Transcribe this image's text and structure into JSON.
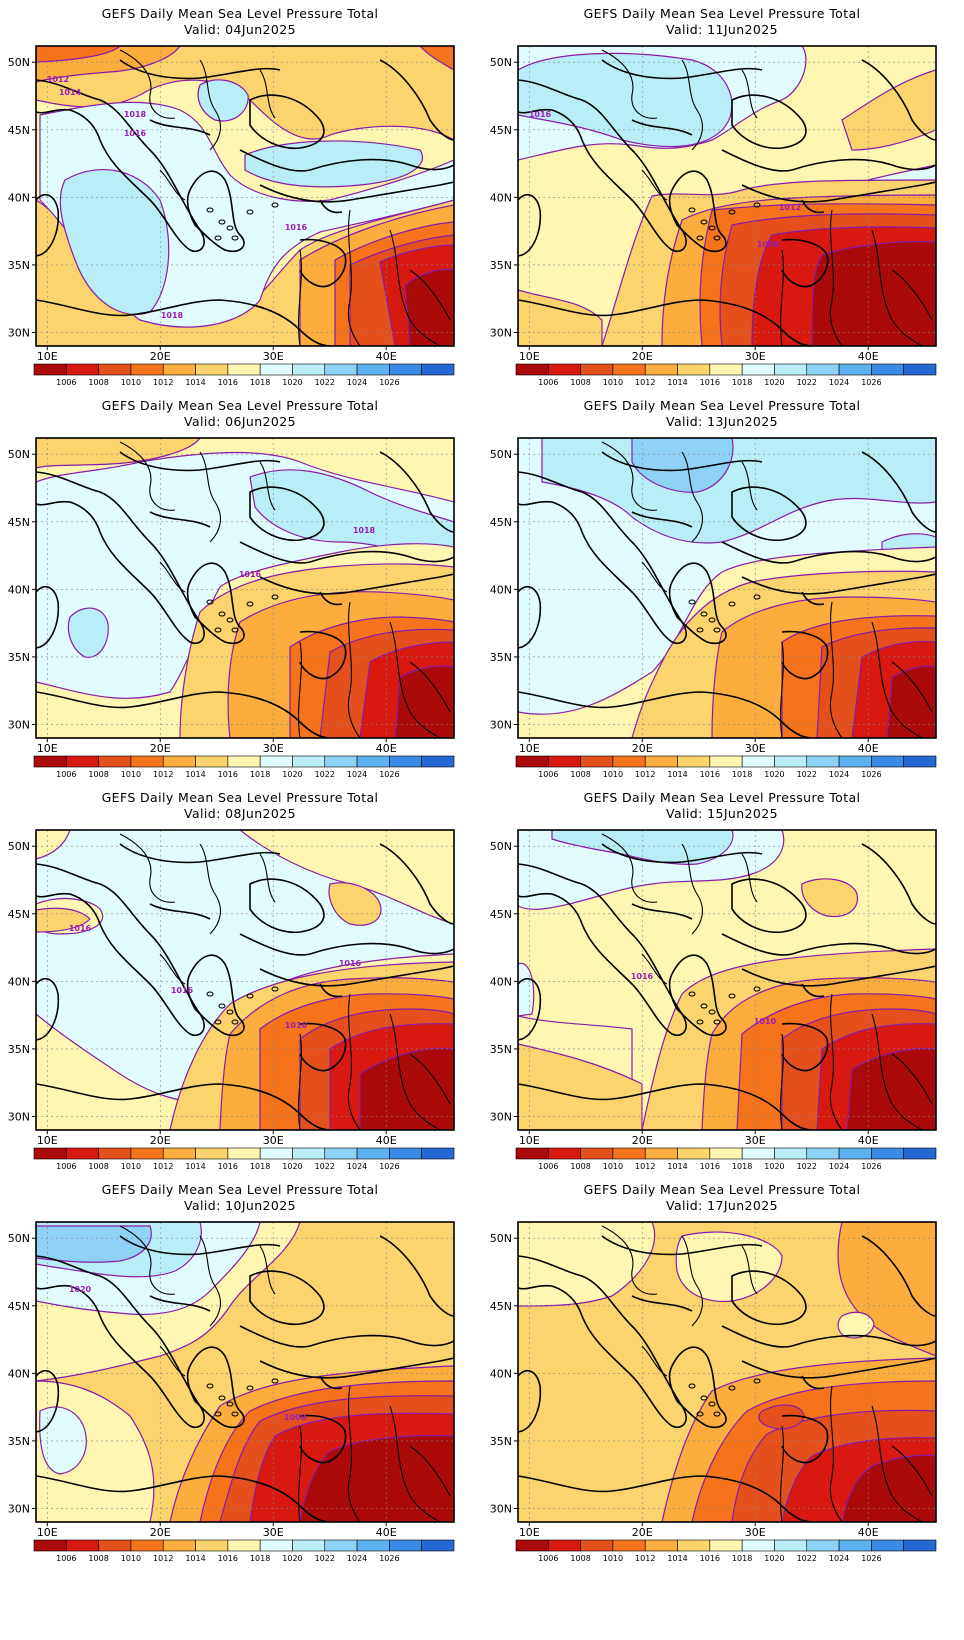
{
  "title": "GEFS Daily Mean Sea Level Pressure Total",
  "valid_prefix": "Valid:",
  "axes": {
    "lon_labels": [
      "10E",
      "20E",
      "30E",
      "40E"
    ],
    "lat_labels": [
      "50N",
      "45N",
      "40N",
      "35N",
      "30N"
    ],
    "lon_values": [
      10,
      20,
      30,
      40
    ],
    "lat_values": [
      50,
      45,
      40,
      35,
      30
    ],
    "lon_range": [
      9,
      46
    ],
    "lat_range": [
      29,
      51.2
    ]
  },
  "colorbar": {
    "labels": [
      "1006",
      "1008",
      "1010",
      "1012",
      "1014",
      "1016",
      "1018",
      "1020",
      "1022",
      "1024",
      "1026"
    ],
    "colors": [
      "#aa0a0a",
      "#d7190f",
      "#e4501c",
      "#f4731b",
      "#fbad3d",
      "#fbd46e",
      "#fff6b2",
      "#e0fcff",
      "#b9eef8",
      "#8ed2f5",
      "#5eb1ef",
      "#3a8be6",
      "#2669d4"
    ]
  },
  "panels": [
    {
      "valid": "04Jun2025",
      "contour_labels": [
        "1012",
        "1014",
        "1018",
        "1016",
        "1016",
        "1018"
      ]
    },
    {
      "valid": "11Jun2025",
      "contour_labels": [
        "1016",
        "1012",
        "1008"
      ]
    },
    {
      "valid": "06Jun2025",
      "contour_labels": [
        "1018",
        "1016"
      ]
    },
    {
      "valid": "13Jun2025",
      "contour_labels": []
    },
    {
      "valid": "08Jun2025",
      "contour_labels": [
        "1016",
        "1016",
        "1016",
        "1010"
      ]
    },
    {
      "valid": "15Jun2025",
      "contour_labels": [
        "1016",
        "1010"
      ]
    },
    {
      "valid": "10Jun2025",
      "contour_labels": [
        "1020",
        "1008"
      ]
    },
    {
      "valid": "17Jun2025",
      "contour_labels": []
    }
  ]
}
